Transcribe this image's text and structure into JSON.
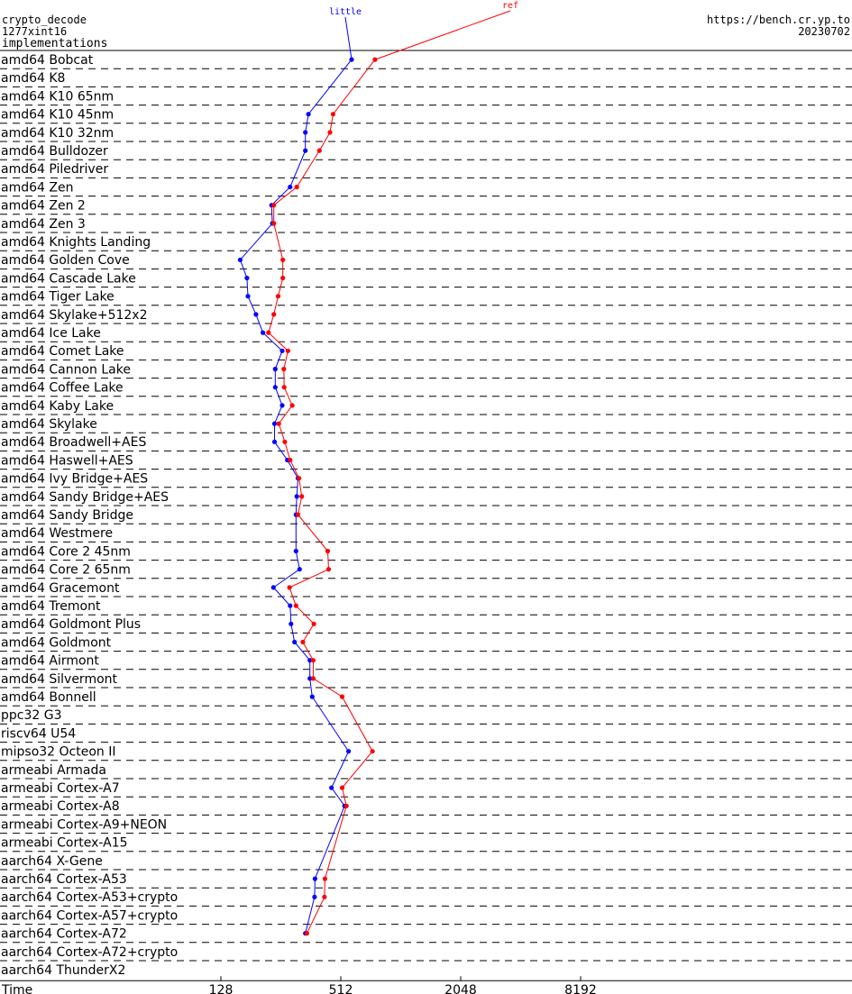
{
  "header": {
    "left_line1": "crypto_decode",
    "left_line2": "1277xint16",
    "left_line3": "implementations",
    "right_line1": "https://bench.cr.yp.to",
    "right_line2": "20230702"
  },
  "chart_data": {
    "type": "line",
    "x_axis_label": "Time",
    "x_scale": "log",
    "x_ticks": [
      128,
      512,
      2048,
      8192
    ],
    "series": [
      {
        "name": "little",
        "color": "#0000ff"
      },
      {
        "name": "ref",
        "color": "#ff0000"
      }
    ],
    "rows": [
      {
        "label": "amd64 Bobcat",
        "little": 580,
        "ref": 760
      },
      {
        "label": "amd64 K8",
        "little": null,
        "ref": null
      },
      {
        "label": "amd64 K10 65nm",
        "little": null,
        "ref": null
      },
      {
        "label": "amd64 K10 45nm",
        "little": 352,
        "ref": 468
      },
      {
        "label": "amd64 K10 32nm",
        "little": 340,
        "ref": 452
      },
      {
        "label": "amd64 Bulldozer",
        "little": 340,
        "ref": 400
      },
      {
        "label": "amd64 Piledriver",
        "little": null,
        "ref": null
      },
      {
        "label": "amd64 Zen",
        "little": 285,
        "ref": 308
      },
      {
        "label": "amd64 Zen 2",
        "little": 230,
        "ref": 236
      },
      {
        "label": "amd64 Zen 3",
        "little": 232,
        "ref": 236
      },
      {
        "label": "amd64 Knights Landing",
        "little": null,
        "ref": null
      },
      {
        "label": "amd64 Golden Cove",
        "little": 160,
        "ref": 262
      },
      {
        "label": "amd64 Cascade Lake",
        "little": 173,
        "ref": 262
      },
      {
        "label": "amd64 Tiger Lake",
        "little": 175,
        "ref": 248
      },
      {
        "label": "amd64 Skylake+512x2",
        "little": 192,
        "ref": 236
      },
      {
        "label": "amd64 Ice Lake",
        "little": 208,
        "ref": 222
      },
      {
        "label": "amd64 Comet Lake",
        "little": 260,
        "ref": 278
      },
      {
        "label": "amd64 Cannon Lake",
        "little": 240,
        "ref": 265
      },
      {
        "label": "amd64 Coffee Lake",
        "little": 240,
        "ref": 266
      },
      {
        "label": "amd64 Kaby Lake",
        "little": 260,
        "ref": 292
      },
      {
        "label": "amd64 Skylake",
        "little": 238,
        "ref": 250
      },
      {
        "label": "amd64 Broadwell+AES",
        "little": 238,
        "ref": 268
      },
      {
        "label": "amd64 Haswell+AES",
        "little": 276,
        "ref": 285
      },
      {
        "label": "amd64 Ivy Bridge+AES",
        "little": 312,
        "ref": 316
      },
      {
        "label": "amd64 Sandy Bridge+AES",
        "little": 308,
        "ref": 326
      },
      {
        "label": "amd64 Sandy Bridge",
        "little": 305,
        "ref": 312
      },
      {
        "label": "amd64 Westmere",
        "little": null,
        "ref": null
      },
      {
        "label": "amd64 Core 2 45nm",
        "little": 305,
        "ref": 440
      },
      {
        "label": "amd64 Core 2 65nm",
        "little": 318,
        "ref": 445
      },
      {
        "label": "amd64 Gracemont",
        "little": 235,
        "ref": 283
      },
      {
        "label": "amd64 Tremont",
        "little": 285,
        "ref": 305
      },
      {
        "label": "amd64 Goldmont Plus",
        "little": 288,
        "ref": 375
      },
      {
        "label": "amd64 Goldmont",
        "little": 300,
        "ref": 330
      },
      {
        "label": "amd64 Airmont",
        "little": 358,
        "ref": 372
      },
      {
        "label": "amd64 Silvermont",
        "little": 358,
        "ref": 372
      },
      {
        "label": "amd64 Bonnell",
        "little": 368,
        "ref": 520
      },
      {
        "label": "ppc32 G3",
        "little": null,
        "ref": null
      },
      {
        "label": "riscv64 U54",
        "little": null,
        "ref": null
      },
      {
        "label": "mipso32 Octeon II",
        "little": 560,
        "ref": 738
      },
      {
        "label": "armeabi Armada",
        "little": null,
        "ref": null
      },
      {
        "label": "armeabi Cortex-A7",
        "little": 460,
        "ref": 520
      },
      {
        "label": "armeabi Cortex-A8",
        "little": 535,
        "ref": 546
      },
      {
        "label": "armeabi Cortex-A9+NEON",
        "little": null,
        "ref": null
      },
      {
        "label": "armeabi Cortex-A15",
        "little": null,
        "ref": null
      },
      {
        "label": "aarch64 X-Gene",
        "little": null,
        "ref": null
      },
      {
        "label": "aarch64 Cortex-A53",
        "little": 380,
        "ref": 426
      },
      {
        "label": "aarch64 Cortex-A53+crypto",
        "little": 378,
        "ref": 424
      },
      {
        "label": "aarch64 Cortex-A57+crypto",
        "little": null,
        "ref": null
      },
      {
        "label": "aarch64 Cortex-A72",
        "little": 340,
        "ref": 346
      },
      {
        "label": "aarch64 Cortex-A72+crypto",
        "little": null,
        "ref": null
      },
      {
        "label": "aarch64 ThunderX2",
        "little": null,
        "ref": null
      }
    ]
  }
}
